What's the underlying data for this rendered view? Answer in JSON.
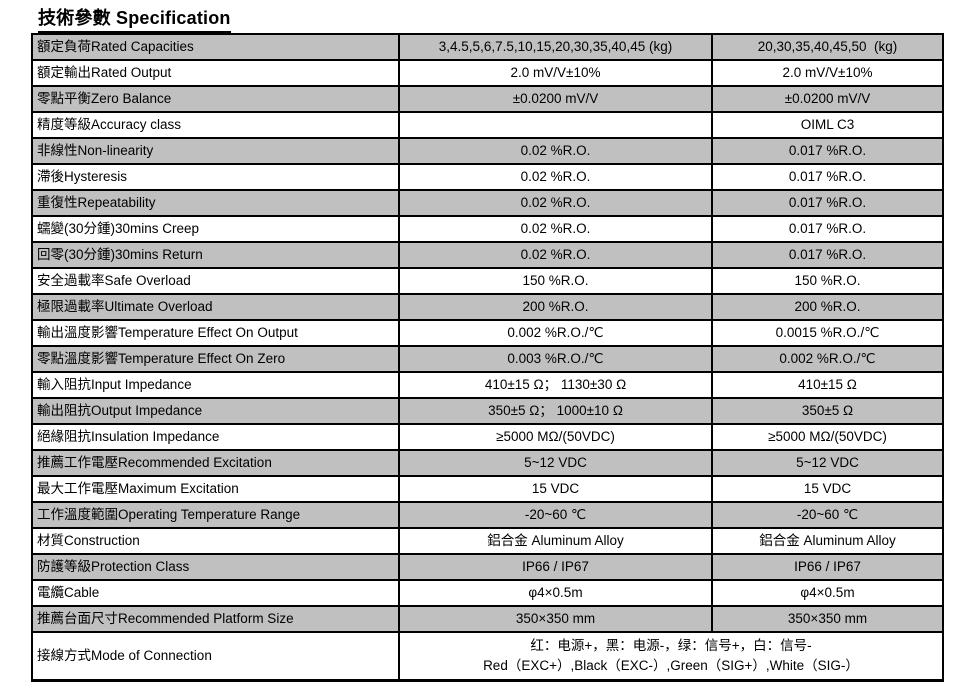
{
  "page": {
    "title": "技術參數 Specification"
  },
  "colors": {
    "shaded_row": "#c0c0c0",
    "plain_row": "#ffffff",
    "border": "#000000"
  },
  "table": {
    "rows": [
      {
        "label": "額定負荷Rated Capacities",
        "values": [
          "3,4.5,5,6,7.5,10,15,20,30,35,40,45 (kg)",
          "20,30,35,40,45,50  (kg)"
        ],
        "shaded": true
      },
      {
        "label": "額定輸出Rated Output",
        "values": [
          "2.0 mV/V±10%",
          "2.0 mV/V±10%"
        ],
        "shaded": false
      },
      {
        "label": "零點平衡Zero Balance",
        "values": [
          "±0.0200 mV/V",
          "±0.0200 mV/V"
        ],
        "shaded": true
      },
      {
        "label": "精度等級Accuracy class",
        "values": [
          "",
          "OIML C3"
        ],
        "shaded": false
      },
      {
        "label": "非線性Non-linearity",
        "values": [
          "0.02 %R.O.",
          "0.017 %R.O."
        ],
        "shaded": true
      },
      {
        "label": "滯後Hysteresis",
        "values": [
          "0.02 %R.O.",
          "0.017 %R.O."
        ],
        "shaded": false
      },
      {
        "label": "重復性Repeatability",
        "values": [
          "0.02 %R.O.",
          "0.017 %R.O."
        ],
        "shaded": true
      },
      {
        "label": "蠕變(30分鍾)30mins Creep",
        "values": [
          "0.02 %R.O.",
          "0.017 %R.O."
        ],
        "shaded": false
      },
      {
        "label": "回零(30分鍾)30mins Return",
        "values": [
          "0.02 %R.O.",
          "0.017 %R.O."
        ],
        "shaded": true
      },
      {
        "label": "安全過載率Safe Overload",
        "values": [
          "150 %R.O.",
          "150 %R.O."
        ],
        "shaded": false
      },
      {
        "label": "極限過載率Ultimate Overload",
        "values": [
          "200 %R.O.",
          "200 %R.O."
        ],
        "shaded": true
      },
      {
        "label": "輸出溫度影響Temperature Effect On Output",
        "values": [
          "0.002 %R.O./℃",
          "0.0015 %R.O./℃"
        ],
        "shaded": false
      },
      {
        "label": "零點溫度影響Temperature Effect On Zero",
        "values": [
          "0.003 %R.O./℃",
          "0.002 %R.O./℃"
        ],
        "shaded": true
      },
      {
        "label": "輸入阻抗Input Impedance",
        "values": [
          "410±15 Ω； 1130±30 Ω",
          "410±15 Ω"
        ],
        "shaded": false
      },
      {
        "label": "輸出阻抗Output Impedance",
        "values": [
          "350±5 Ω； 1000±10 Ω",
          "350±5 Ω"
        ],
        "shaded": true
      },
      {
        "label": "絕緣阻抗Insulation Impedance",
        "values": [
          "≥5000 MΩ/(50VDC)",
          "≥5000 MΩ/(50VDC)"
        ],
        "shaded": false
      },
      {
        "label": "推薦工作電壓Recommended Excitation",
        "values": [
          "5~12 VDC",
          "5~12 VDC"
        ],
        "shaded": true
      },
      {
        "label": "最大工作電壓Maximum Excitation",
        "values": [
          "15 VDC",
          "15 VDC"
        ],
        "shaded": false
      },
      {
        "label": "工作溫度範圍Operating Temperature Range",
        "values": [
          "-20~60 ℃",
          "-20~60 ℃"
        ],
        "shaded": true
      },
      {
        "label": "材質Construction",
        "values": [
          "鋁合金 Aluminum Alloy",
          "鋁合金 Aluminum Alloy"
        ],
        "shaded": false
      },
      {
        "label": "防護等級Protection Class",
        "values": [
          "IP66 / IP67",
          "IP66 / IP67"
        ],
        "shaded": true
      },
      {
        "label": "電纜Cable",
        "values": [
          "φ4×0.5m",
          "φ4×0.5m"
        ],
        "shaded": false
      },
      {
        "label": "推薦台面尺寸Recommended Platform Size",
        "values": [
          "350×350 mm",
          "350×350 mm"
        ],
        "shaded": true
      },
      {
        "label": "接線方式Mode of Connection",
        "span": true,
        "lines": [
          "红：电源+，黑：电源-，绿：信号+，白：信号-",
          "Red（EXC+）,Black（EXC-）,Green（SIG+）,White（SIG-）"
        ],
        "shaded": false
      }
    ]
  }
}
